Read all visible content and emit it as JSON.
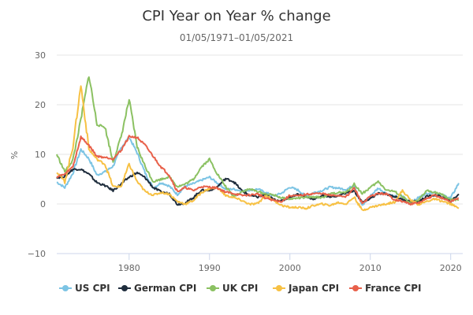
{
  "chart_data": {
    "type": "line",
    "title": "CPI Year on Year % change",
    "subtitle": "01/05/1971–01/05/2021",
    "xlabel": "",
    "ylabel": "%",
    "xlim": [
      1971,
      2021.5
    ],
    "ylim": [
      -10,
      30
    ],
    "yticks": [
      -10,
      0,
      10,
      20,
      30
    ],
    "xticks": [
      1980,
      1990,
      2000,
      2010,
      2020
    ],
    "grid": true,
    "legend": "bottom",
    "series": [
      {
        "name": "US CPI",
        "color": "#7cc4e4",
        "x": [
          1971,
          1972,
          1973,
          1974,
          1975,
          1976,
          1977,
          1978,
          1979,
          1980,
          1981,
          1982,
          1983,
          1984,
          1985,
          1986,
          1987,
          1988,
          1989,
          1990,
          1991,
          1992,
          1993,
          1994,
          1995,
          1996,
          1997,
          1998,
          1999,
          2000,
          2001,
          2002,
          2003,
          2004,
          2005,
          2006,
          2007,
          2008,
          2009,
          2010,
          2011,
          2012,
          2013,
          2014,
          2015,
          2016,
          2017,
          2018,
          2019,
          2020,
          2021
        ],
        "values": [
          4.4,
          3.3,
          6.2,
          11.0,
          9.1,
          5.8,
          6.5,
          7.6,
          11.3,
          13.5,
          10.3,
          6.2,
          3.2,
          4.3,
          3.6,
          1.9,
          3.6,
          4.1,
          4.8,
          5.4,
          4.2,
          3.0,
          3.0,
          2.6,
          2.8,
          3.0,
          2.3,
          1.6,
          2.2,
          3.4,
          2.8,
          1.6,
          2.3,
          2.7,
          3.4,
          3.2,
          2.9,
          3.8,
          -0.4,
          1.6,
          3.2,
          2.1,
          1.5,
          1.6,
          0.1,
          1.3,
          2.1,
          2.4,
          1.8,
          1.2,
          4.2
        ]
      },
      {
        "name": "German CPI",
        "color": "#1f2d3d",
        "x": [
          1971,
          1972,
          1973,
          1974,
          1975,
          1976,
          1977,
          1978,
          1979,
          1980,
          1981,
          1982,
          1983,
          1984,
          1985,
          1986,
          1987,
          1988,
          1989,
          1990,
          1991,
          1992,
          1993,
          1994,
          1995,
          1996,
          1997,
          1998,
          1999,
          2000,
          2001,
          2002,
          2003,
          2004,
          2005,
          2006,
          2007,
          2008,
          2009,
          2010,
          2011,
          2012,
          2013,
          2014,
          2015,
          2016,
          2017,
          2018,
          2019,
          2020,
          2021
        ],
        "values": [
          5.3,
          5.5,
          7.0,
          7.0,
          6.0,
          4.3,
          3.7,
          2.7,
          4.0,
          5.4,
          6.3,
          5.3,
          3.3,
          2.4,
          2.1,
          -0.1,
          0.2,
          1.3,
          2.8,
          2.7,
          3.5,
          5.1,
          4.5,
          2.7,
          1.7,
          1.4,
          1.9,
          0.9,
          0.6,
          1.4,
          2.0,
          1.4,
          1.0,
          1.7,
          1.5,
          1.6,
          2.3,
          2.6,
          0.3,
          1.1,
          2.1,
          2.0,
          1.5,
          0.9,
          0.5,
          0.5,
          1.5,
          1.8,
          1.4,
          0.5,
          2.0
        ]
      },
      {
        "name": "UK CPI",
        "color": "#8bc162",
        "x": [
          1971,
          1972,
          1973,
          1974,
          1975,
          1976,
          1977,
          1978,
          1979,
          1980,
          1981,
          1982,
          1983,
          1984,
          1985,
          1986,
          1987,
          1988,
          1989,
          1990,
          1991,
          1992,
          1993,
          1994,
          1995,
          1996,
          1997,
          1998,
          1999,
          2000,
          2001,
          2002,
          2003,
          2004,
          2005,
          2006,
          2007,
          2008,
          2009,
          2010,
          2011,
          2012,
          2013,
          2014,
          2015,
          2016,
          2017,
          2018,
          2019,
          2020,
          2021
        ],
        "values": [
          10.0,
          6.5,
          8.8,
          17.0,
          26.0,
          16.0,
          15.5,
          8.5,
          13.5,
          21.0,
          11.5,
          7.5,
          4.5,
          5.0,
          5.5,
          3.5,
          4.0,
          5.0,
          7.5,
          9.0,
          6.0,
          3.5,
          1.5,
          2.5,
          3.0,
          2.5,
          2.0,
          1.8,
          1.2,
          1.0,
          1.2,
          1.3,
          1.4,
          1.3,
          2.0,
          2.3,
          2.3,
          4.0,
          2.1,
          3.3,
          4.5,
          2.8,
          2.5,
          1.5,
          0.0,
          0.7,
          2.7,
          2.4,
          1.8,
          0.9,
          0.8
        ]
      },
      {
        "name": "Japan CPI",
        "color": "#f7c144",
        "x": [
          1971,
          1972,
          1973,
          1974,
          1975,
          1976,
          1977,
          1978,
          1979,
          1980,
          1981,
          1982,
          1983,
          1984,
          1985,
          1986,
          1987,
          1988,
          1989,
          1990,
          1991,
          1992,
          1993,
          1994,
          1995,
          1996,
          1997,
          1998,
          1999,
          2000,
          2001,
          2002,
          2003,
          2004,
          2005,
          2006,
          2007,
          2008,
          2009,
          2010,
          2011,
          2012,
          2013,
          2014,
          2015,
          2016,
          2017,
          2018,
          2019,
          2020,
          2021
        ],
        "values": [
          6.5,
          4.5,
          11.5,
          24.0,
          11.0,
          9.0,
          8.0,
          3.5,
          3.5,
          8.0,
          4.5,
          2.5,
          1.8,
          2.3,
          2.0,
          0.5,
          0.0,
          0.7,
          2.3,
          3.1,
          3.3,
          1.7,
          1.3,
          0.7,
          -0.1,
          0.1,
          1.7,
          0.7,
          -0.3,
          -0.7,
          -0.7,
          -0.9,
          -0.3,
          0.0,
          -0.3,
          0.3,
          0.0,
          1.4,
          -1.3,
          -0.7,
          -0.3,
          0.0,
          0.4,
          2.7,
          0.8,
          -0.1,
          0.5,
          1.0,
          0.5,
          0.0,
          -0.9
        ]
      },
      {
        "name": "France CPI",
        "color": "#e8604a",
        "x": [
          1971,
          1972,
          1973,
          1974,
          1975,
          1976,
          1977,
          1978,
          1979,
          1980,
          1981,
          1982,
          1983,
          1984,
          1985,
          1986,
          1987,
          1988,
          1989,
          1990,
          1991,
          1992,
          1993,
          1994,
          1995,
          1996,
          1997,
          1998,
          1999,
          2000,
          2001,
          2002,
          2003,
          2004,
          2005,
          2006,
          2007,
          2008,
          2009,
          2010,
          2011,
          2012,
          2013,
          2014,
          2015,
          2016,
          2017,
          2018,
          2019,
          2020,
          2021
        ],
        "values": [
          5.5,
          6.0,
          7.5,
          13.5,
          11.8,
          9.6,
          9.4,
          9.1,
          10.8,
          13.6,
          13.4,
          11.8,
          9.6,
          7.4,
          5.8,
          2.5,
          3.3,
          2.7,
          3.5,
          3.4,
          3.2,
          2.4,
          2.1,
          1.7,
          1.8,
          2.0,
          1.2,
          0.7,
          0.5,
          1.7,
          1.6,
          1.9,
          2.1,
          2.1,
          1.7,
          1.7,
          1.5,
          3.2,
          0.1,
          1.5,
          2.1,
          2.0,
          0.9,
          0.5,
          0.0,
          0.2,
          1.0,
          1.8,
          1.1,
          0.5,
          1.2
        ]
      }
    ]
  }
}
